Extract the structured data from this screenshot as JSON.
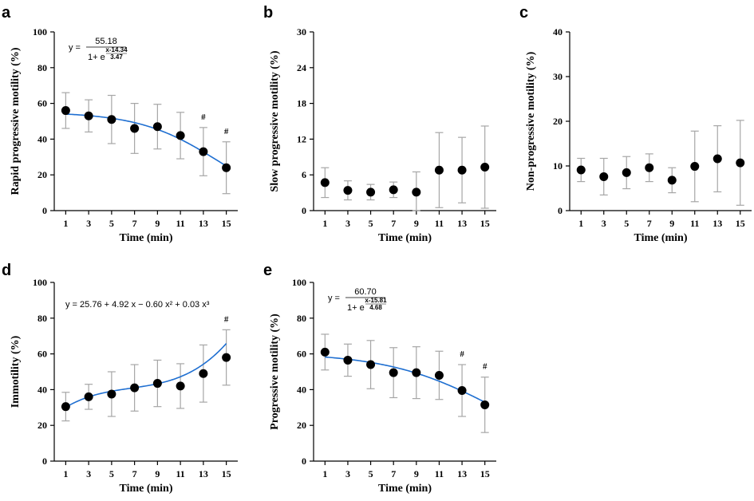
{
  "chart_data": [
    {
      "id": "a",
      "type": "scatter",
      "panel_label": "a",
      "xlabel": "Time (min)",
      "ylabel": "Rapid progressive motility (%)",
      "x": [
        1,
        3,
        5,
        7,
        9,
        11,
        13,
        15
      ],
      "y": [
        56,
        53,
        51,
        46,
        47,
        42,
        33,
        24
      ],
      "error": [
        10,
        9,
        13.5,
        14,
        12.5,
        13,
        13.5,
        14.5
      ],
      "ylim": [
        0,
        100
      ],
      "yticks": [
        0,
        20,
        40,
        60,
        80,
        100
      ],
      "xticks": [
        1,
        3,
        5,
        7,
        9,
        11,
        13,
        15
      ],
      "fit": {
        "type": "logistic",
        "A": 55.18,
        "x0": 14.34,
        "k": 3.47
      },
      "equation": {
        "lhs": "y =",
        "num": "55.18",
        "den": "1+ e",
        "exp_num": "x-14.34",
        "exp_den": "3.47"
      },
      "markers": [
        {
          "x": 13,
          "text": "#"
        },
        {
          "x": 15,
          "text": "#"
        }
      ]
    },
    {
      "id": "b",
      "type": "scatter",
      "panel_label": "b",
      "xlabel": "Time (min)",
      "ylabel": "Slow progressive motility (%)",
      "x": [
        1,
        3,
        5,
        7,
        9,
        11,
        13,
        15
      ],
      "y": [
        4.7,
        3.4,
        3.1,
        3.5,
        3.1,
        6.8,
        6.8,
        7.3
      ],
      "error": [
        2.5,
        1.6,
        1.3,
        1.3,
        3.4,
        6.3,
        5.5,
        6.9
      ],
      "ylim": [
        0,
        30
      ],
      "yticks": [
        0,
        6,
        12,
        18,
        24,
        30
      ],
      "xticks": [
        1,
        3,
        5,
        7,
        9,
        11,
        13,
        15
      ]
    },
    {
      "id": "c",
      "type": "scatter",
      "panel_label": "c",
      "xlabel": "Time (min)",
      "ylabel": "Non-progressive motility (%)",
      "x": [
        1,
        3,
        5,
        7,
        9,
        11,
        13,
        15
      ],
      "y": [
        9.1,
        7.6,
        8.5,
        9.6,
        6.8,
        9.9,
        11.6,
        10.7
      ],
      "error": [
        2.6,
        4.1,
        3.6,
        3.1,
        2.8,
        7.9,
        7.4,
        9.5
      ],
      "ylim": [
        0,
        40
      ],
      "yticks": [
        0,
        10,
        20,
        30,
        40
      ],
      "xticks": [
        1,
        3,
        5,
        7,
        9,
        11,
        13,
        15
      ]
    },
    {
      "id": "d",
      "type": "scatter",
      "panel_label": "d",
      "xlabel": "Time (min)",
      "ylabel": "Immotility (%)",
      "x": [
        1,
        3,
        5,
        7,
        9,
        11,
        13,
        15
      ],
      "y": [
        30.5,
        36,
        37.5,
        41,
        43.5,
        42,
        49,
        58
      ],
      "error": [
        8,
        7,
        12.5,
        13,
        13,
        12.5,
        16,
        15.5
      ],
      "ylim": [
        0,
        100
      ],
      "yticks": [
        0,
        20,
        40,
        60,
        80,
        100
      ],
      "xticks": [
        1,
        3,
        5,
        7,
        9,
        11,
        13,
        15
      ],
      "fit": {
        "type": "cubic",
        "coef": [
          25.76,
          4.92,
          -0.6,
          0.03
        ]
      },
      "equation": {
        "text": "y = 25.76 + 4.92 x − 0.60 x² + 0.03 x³"
      },
      "markers": [
        {
          "x": 15,
          "text": "#"
        }
      ]
    },
    {
      "id": "e",
      "type": "scatter",
      "panel_label": "e",
      "xlabel": "Time (min)",
      "ylabel": "Progressive motility (%)",
      "x": [
        1,
        3,
        5,
        7,
        9,
        11,
        13,
        15
      ],
      "y": [
        61,
        56.5,
        54,
        49.5,
        49.5,
        48,
        39.5,
        31.5
      ],
      "error": [
        10,
        9,
        13.5,
        14,
        14.5,
        13.5,
        14.5,
        15.5
      ],
      "ylim": [
        0,
        100
      ],
      "yticks": [
        0,
        20,
        40,
        60,
        80,
        100
      ],
      "xticks": [
        1,
        3,
        5,
        7,
        9,
        11,
        13,
        15
      ],
      "fit": {
        "type": "logistic",
        "A": 60.7,
        "x0": 15.81,
        "k": 4.68
      },
      "equation": {
        "lhs": "y =",
        "num": "60.70",
        "den": "1+ e",
        "exp_num": "x-15.81",
        "exp_den": "4.68"
      },
      "markers": [
        {
          "x": 13,
          "text": "#"
        },
        {
          "x": 15,
          "text": "#"
        }
      ]
    }
  ],
  "style": {
    "point_color": "#000000",
    "fit_color": "#1f6fd1",
    "error_bar_color": "#a6a6a6"
  }
}
